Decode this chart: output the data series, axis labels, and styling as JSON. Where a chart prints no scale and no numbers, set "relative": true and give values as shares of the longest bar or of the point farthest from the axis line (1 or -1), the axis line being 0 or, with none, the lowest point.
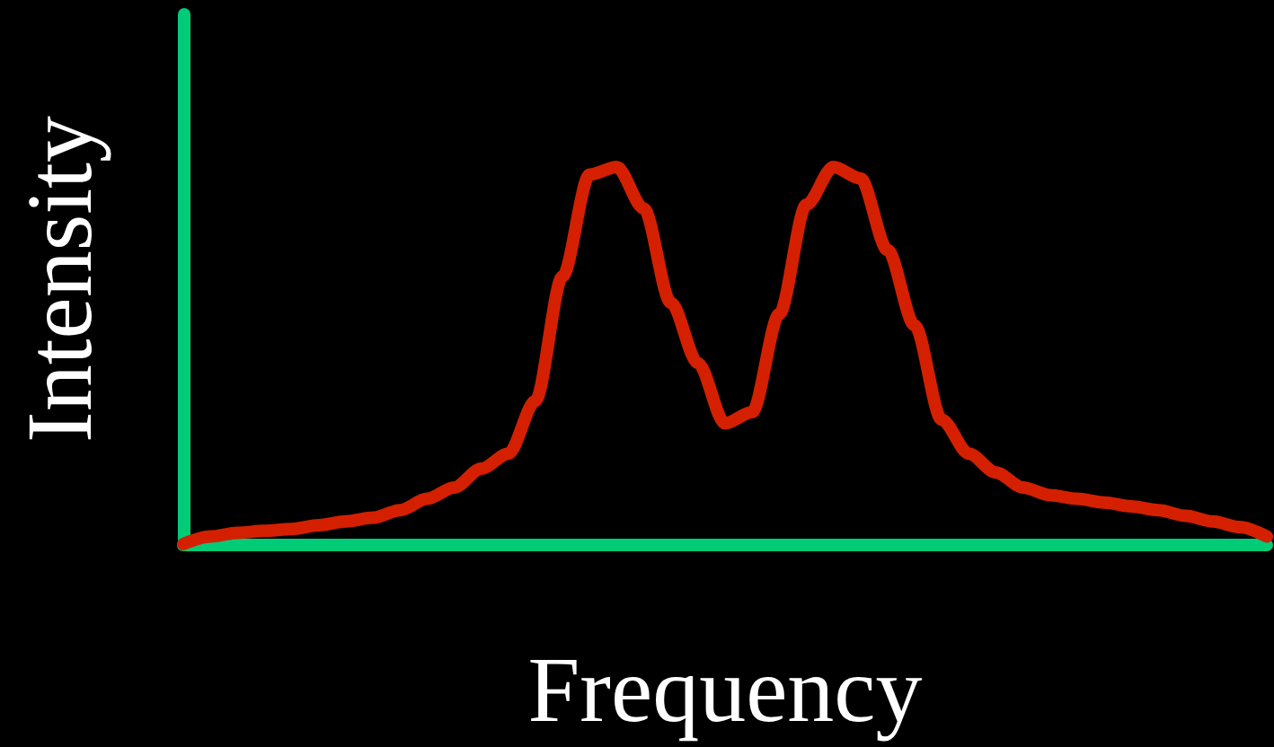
{
  "chart_data": {
    "type": "line",
    "relative": true,
    "xlabel": "Frequency",
    "ylabel": "Intensity",
    "categories": [
      null,
      null,
      null,
      null,
      null,
      null,
      null,
      null,
      null,
      null,
      null,
      null,
      null,
      null,
      null,
      null,
      null,
      null,
      null,
      null,
      null,
      null,
      null,
      null,
      null,
      null,
      null,
      null,
      null,
      null,
      null,
      null,
      null,
      null,
      null,
      null,
      null,
      null,
      null,
      null,
      null
    ],
    "series": [
      {
        "color": "#d42000",
        "values": [
          0.0,
          0.02,
          0.03,
          0.035,
          0.04,
          0.05,
          0.06,
          0.07,
          0.09,
          0.12,
          0.15,
          0.2,
          0.24,
          0.38,
          0.71,
          0.98,
          1.0,
          0.89,
          0.64,
          0.48,
          0.32,
          0.35,
          0.61,
          0.9,
          1.0,
          0.97,
          0.78,
          0.58,
          0.33,
          0.24,
          0.19,
          0.15,
          0.13,
          0.12,
          0.11,
          0.1,
          0.09,
          0.075,
          0.06,
          0.045,
          0.02
        ]
      }
    ],
    "grid": false,
    "line_style": "solid"
  }
}
